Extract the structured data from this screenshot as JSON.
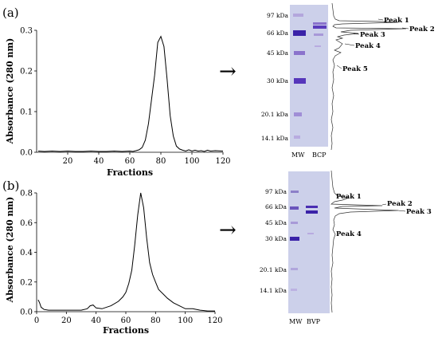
{
  "chart_data": [
    {
      "panel_label": "(a)",
      "type": "line",
      "xlabel": "Fractions",
      "ylabel": "Absorbance (280 nm)",
      "xlim": [
        0,
        120
      ],
      "ylim": [
        0,
        0.3
      ],
      "xticks": [
        20,
        40,
        60,
        80,
        100,
        120
      ],
      "yticks": [
        0.0,
        0.1,
        0.2,
        0.3
      ],
      "ytick_labels": [
        "0.0",
        "0.1",
        "0.2",
        "0.3"
      ],
      "series": [
        {
          "x": [
            1,
            5,
            10,
            15,
            20,
            25,
            30,
            35,
            40,
            45,
            50,
            55,
            60,
            62,
            64,
            66,
            68,
            70,
            72,
            74,
            76,
            78,
            80,
            82,
            84,
            86,
            88,
            90,
            92,
            94,
            96,
            98,
            100,
            102,
            104,
            106,
            108,
            110,
            112,
            115,
            120
          ],
          "y": [
            0.003,
            0.002,
            0.003,
            0.002,
            0.003,
            0.002,
            0.002,
            0.003,
            0.002,
            0.002,
            0.003,
            0.002,
            0.003,
            0.002,
            0.004,
            0.006,
            0.012,
            0.03,
            0.07,
            0.13,
            0.19,
            0.27,
            0.285,
            0.26,
            0.18,
            0.09,
            0.04,
            0.015,
            0.008,
            0.005,
            0.003,
            0.006,
            0.003,
            0.005,
            0.003,
            0.004,
            0.002,
            0.005,
            0.003,
            0.004,
            0.003
          ]
        }
      ]
    },
    {
      "panel_label": "(b)",
      "type": "line",
      "xlabel": "Fractions",
      "ylabel": "Absorbance (280 nm)",
      "xlim": [
        0,
        120
      ],
      "ylim": [
        0,
        0.8
      ],
      "xticks": [
        0,
        20,
        40,
        60,
        80,
        100,
        120
      ],
      "yticks": [
        0.0,
        0.2,
        0.4,
        0.6,
        0.8
      ],
      "ytick_labels": [
        "0.0",
        "0.2",
        "0.4",
        "0.6",
        "0.8"
      ],
      "series": [
        {
          "x": [
            1,
            2,
            3,
            5,
            8,
            12,
            20,
            30,
            34,
            36,
            38,
            40,
            44,
            50,
            55,
            58,
            60,
            62,
            64,
            66,
            68,
            70,
            72,
            74,
            76,
            78,
            80,
            82,
            85,
            88,
            92,
            96,
            100,
            105,
            110,
            115,
            120
          ],
          "y": [
            0.08,
            0.06,
            0.03,
            0.015,
            0.01,
            0.01,
            0.01,
            0.01,
            0.02,
            0.04,
            0.045,
            0.025,
            0.02,
            0.04,
            0.07,
            0.1,
            0.13,
            0.19,
            0.28,
            0.45,
            0.65,
            0.8,
            0.7,
            0.5,
            0.33,
            0.25,
            0.2,
            0.15,
            0.12,
            0.09,
            0.06,
            0.04,
            0.02,
            0.02,
            0.01,
            0.005,
            0.005
          ]
        }
      ]
    }
  ],
  "gels": [
    {
      "markers": [
        "97 kDa",
        "66 kDa",
        "45 kDa",
        "30 kDa",
        "20.1 kDa",
        "14.1 kDa"
      ],
      "lanes": [
        "MW",
        "BCP"
      ],
      "peaks": [
        "Peak 1",
        "Peak 2",
        "Peak 3",
        "Peak 4",
        "Peak 5"
      ]
    },
    {
      "markers": [
        "97 kDa",
        "66 kDa",
        "45 kDa",
        "30 kDa",
        "20.1 kDa",
        "14.1 kDa"
      ],
      "lanes": [
        "MW",
        "BVP"
      ],
      "peaks": [
        "Peak 1",
        "Peak 2",
        "Peak 3",
        "Peak 4"
      ]
    }
  ],
  "colors": {
    "gel_background": "#ccd0ea",
    "band_dark": "#3a22a8",
    "band_mid": "#6a4cc8",
    "band_light": "#a89ad8"
  },
  "arrow_symbol": "→"
}
